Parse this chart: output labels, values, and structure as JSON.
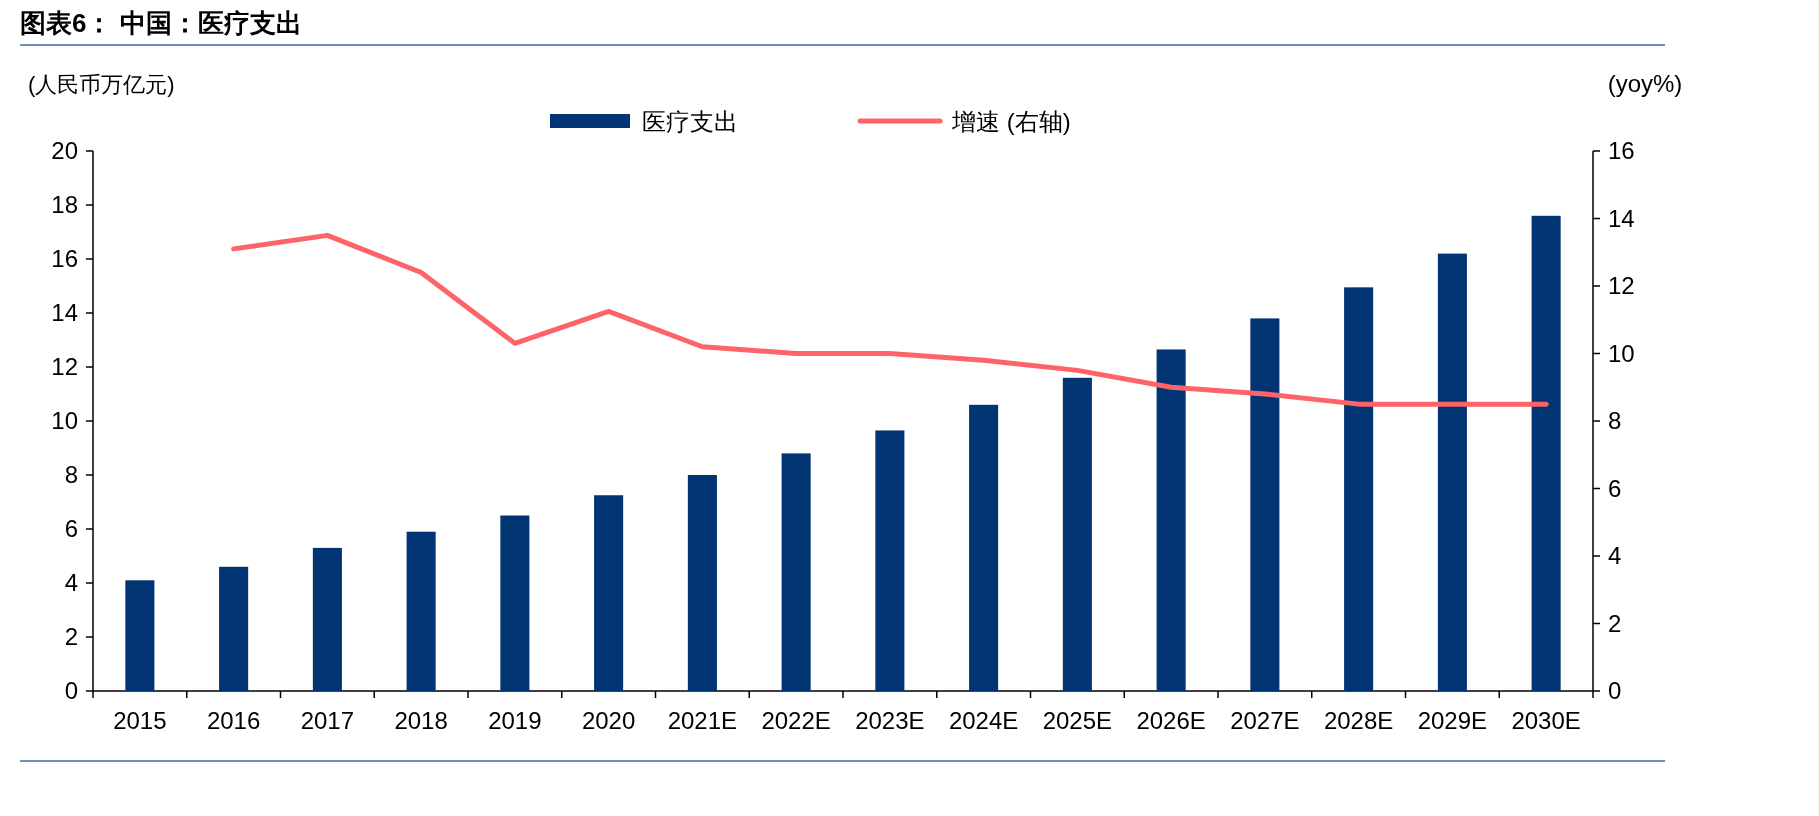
{
  "chart_data": {
    "type": "bar",
    "title": "图表6：  中国：医疗支出",
    "ylabel": "(人民币万亿元)",
    "y2label": "(yoy%)",
    "categories": [
      "2015",
      "2016",
      "2017",
      "2018",
      "2019",
      "2020",
      "2021E",
      "2022E",
      "2023E",
      "2024E",
      "2025E",
      "2026E",
      "2027E",
      "2028E",
      "2029E",
      "2030E"
    ],
    "series": [
      {
        "name": "医疗支出",
        "color": "#003473",
        "values": [
          4.1,
          4.6,
          5.3,
          5.9,
          6.5,
          7.25,
          8.0,
          8.8,
          9.65,
          10.6,
          11.6,
          12.65,
          13.8,
          14.95,
          16.2,
          17.6
        ]
      },
      {
        "name": "增速 (右轴)",
        "type": "line",
        "axis": "y2",
        "color": "#fe6467",
        "values": [
          null,
          13.1,
          13.5,
          12.4,
          10.3,
          11.25,
          10.2,
          10.0,
          10.0,
          9.8,
          9.5,
          9.0,
          8.8,
          8.5,
          8.5,
          8.5
        ]
      }
    ],
    "ylim": [
      0,
      20
    ],
    "yticks": [
      0,
      2,
      4,
      6,
      8,
      10,
      12,
      14,
      16,
      18,
      20
    ],
    "y2lim": [
      0,
      16
    ],
    "y2ticks": [
      0,
      2,
      4,
      6,
      8,
      10,
      12,
      14,
      16
    ],
    "legend": "top"
  }
}
